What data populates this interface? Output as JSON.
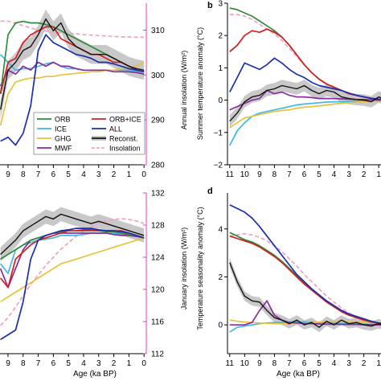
{
  "panels": {
    "a": {
      "right_axis": {
        "label": "Annual insolation (W/m²)",
        "ticks": [
          "280",
          "290",
          "300",
          "310"
        ]
      },
      "x_ticks": [
        "9",
        "8",
        "7",
        "6",
        "5",
        "4",
        "3",
        "2",
        "1",
        "0"
      ]
    },
    "b": {
      "letter": "b",
      "y_label": "Summer temperature anomaly (°C)",
      "y_ticks": [
        "−2",
        "−1",
        "0",
        "1",
        "2",
        "3"
      ],
      "x_ticks": [
        "11",
        "10",
        "9",
        "8",
        "7",
        "6",
        "5",
        "4",
        "3",
        "2",
        "1"
      ]
    },
    "c": {
      "right_axis": {
        "label": "January insolation (W/m²)",
        "ticks": [
          "112",
          "116",
          "120",
          "124",
          "128",
          "132"
        ]
      },
      "x_ticks": [
        "9",
        "8",
        "7",
        "6",
        "5",
        "4",
        "3",
        "2",
        "1",
        "0"
      ],
      "x_label": "Age (ka BP)"
    },
    "d": {
      "letter": "d",
      "y_label": "Temperature seasonality anomaly (°C)",
      "y_ticks": [
        "0",
        "2",
        "4"
      ],
      "x_ticks": [
        "11",
        "10",
        "9",
        "8",
        "7",
        "6",
        "5",
        "4",
        "3",
        "2",
        "1"
      ],
      "x_label": "Age (ka BP)"
    }
  },
  "legend": [
    {
      "label": "ORB",
      "color": "#2e8b3a",
      "style": "solid"
    },
    {
      "label": "ORB+ICE",
      "color": "#d42020",
      "style": "solid"
    },
    {
      "label": "ICE",
      "color": "#3fb8e6",
      "style": "solid"
    },
    {
      "label": "ALL",
      "color": "#1a2fb0",
      "style": "solid"
    },
    {
      "label": "GHG",
      "color": "#e8c23a",
      "style": "solid"
    },
    {
      "label": "Reconst.",
      "color": "#111111",
      "style": "reconst"
    },
    {
      "label": "MWF",
      "color": "#8a2ba0",
      "style": "solid"
    },
    {
      "label": "Insolation",
      "color": "#f0a0c8",
      "style": "dashed"
    }
  ],
  "chart_data": [
    {
      "type": "line",
      "panel": "a",
      "x": [
        9.5,
        9,
        8.5,
        8,
        7.5,
        7,
        6.5,
        6,
        5.5,
        5,
        4.5,
        4,
        3.5,
        3,
        2.5,
        2,
        1.5,
        1,
        0.5,
        0
      ],
      "right_axis_range": [
        280,
        316
      ],
      "series": [
        {
          "name": "ORB",
          "values": [
            -0.2,
            0.55,
            0.7,
            0.72,
            0.7,
            0.7,
            0.68,
            0.65,
            0.6,
            0.55,
            0.5,
            0.45,
            0.4,
            0.35,
            0.3,
            0.25,
            0.2,
            0.15,
            0.1,
            0.08
          ]
        },
        {
          "name": "ORB+ICE",
          "values": [
            -0.2,
            0.2,
            0.25,
            0.45,
            0.55,
            0.6,
            0.65,
            0.65,
            0.5,
            0.45,
            0.4,
            0.35,
            0.3,
            0.3,
            0.25,
            0.2,
            0.2,
            0.15,
            0.1,
            0.08
          ]
        },
        {
          "name": "ICE",
          "values": [
            0.3,
            0.2,
            0.1,
            0.12,
            0.12,
            0.15,
            0.18,
            0.2,
            0.15,
            0.12,
            0.12,
            0.1,
            0.1,
            0.1,
            0.1,
            0.1,
            0.1,
            0.1,
            0.08,
            0.05
          ]
        },
        {
          "name": "ALL",
          "values": [
            -0.8,
            -0.75,
            -0.85,
            -0.7,
            -0.35,
            0.35,
            0.55,
            0.45,
            0.4,
            0.35,
            0.3,
            0.28,
            0.25,
            0.2,
            0.2,
            0.18,
            0.15,
            0.12,
            0.1,
            0.08
          ]
        },
        {
          "name": "GHG",
          "values": [
            -0.6,
            -0.2,
            -0.05,
            -0.02,
            0.0,
            0.0,
            0.02,
            0.02,
            0.04,
            0.05,
            0.06,
            0.07,
            0.08,
            0.08,
            0.1,
            0.1,
            0.12,
            0.12,
            0.15,
            0.2
          ]
        },
        {
          "name": "Reconst.",
          "values": [
            -0.4,
            0.1,
            0.2,
            0.35,
            0.4,
            0.55,
            0.75,
            0.6,
            0.7,
            0.5,
            0.4,
            0.35,
            0.3,
            0.3,
            0.3,
            0.25,
            0.2,
            0.15,
            0.12,
            0.1
          ]
        },
        {
          "name": "MWF",
          "values": [
            -0.1,
            0.1,
            0.05,
            0.15,
            0.1,
            0.2,
            0.15,
            0.2,
            0.15,
            0.15,
            0.12,
            0.1,
            0.1,
            0.1,
            0.1,
            0.08,
            0.08,
            0.08,
            0.07,
            0.05
          ]
        },
        {
          "name": "Insolation",
          "values": [
            312,
            312,
            311.5,
            311,
            310.5,
            310,
            309.8,
            309.5,
            309.4,
            309.3,
            309.2,
            309,
            308.9,
            308.8,
            308.7,
            308.6,
            308.5,
            308.5,
            308.4,
            308.4
          ]
        }
      ]
    },
    {
      "type": "line",
      "panel": "b",
      "x": [
        11,
        10.5,
        10,
        9.5,
        9,
        8.5,
        8,
        7.5,
        7,
        6.5,
        6,
        5.5,
        5,
        4.5,
        4,
        3.5,
        3,
        2.5,
        2,
        1.5,
        1,
        0.5,
        0
      ],
      "ylim": [
        -2,
        3
      ],
      "series": [
        {
          "name": "ORB",
          "values": [
            2.85,
            2.8,
            2.7,
            2.6,
            2.45,
            2.3,
            2.15,
            1.95,
            1.7,
            1.4,
            1.1,
            0.85,
            0.65,
            0.5,
            0.4,
            0.3,
            0.2,
            0.15,
            0.1,
            0.05,
            0.02,
            0.0,
            0.0
          ]
        },
        {
          "name": "ORB+ICE",
          "values": [
            1.5,
            1.7,
            2.0,
            2.15,
            2.1,
            2.2,
            2.1,
            1.95,
            1.7,
            1.4,
            1.1,
            0.85,
            0.65,
            0.5,
            0.4,
            0.3,
            0.2,
            0.15,
            0.1,
            0.05,
            0.02,
            0.0,
            0.0
          ]
        },
        {
          "name": "ICE",
          "values": [
            -1.4,
            -0.95,
            -0.7,
            -0.5,
            -0.4,
            -0.35,
            -0.3,
            -0.25,
            -0.2,
            -0.15,
            -0.12,
            -0.1,
            -0.08,
            -0.06,
            -0.05,
            -0.05,
            -0.04,
            -0.03,
            -0.03,
            -0.02,
            -0.02,
            -0.01,
            0.0
          ]
        },
        {
          "name": "ALL",
          "values": [
            0.25,
            0.7,
            1.15,
            1.05,
            0.95,
            1.1,
            1.3,
            1.15,
            0.95,
            0.8,
            0.7,
            0.55,
            0.45,
            0.4,
            0.35,
            0.3,
            0.22,
            0.15,
            0.1,
            0.06,
            0.03,
            0.01,
            0.0
          ]
        },
        {
          "name": "GHG",
          "values": [
            -0.85,
            -0.7,
            -0.55,
            -0.5,
            -0.45,
            -0.4,
            -0.35,
            -0.32,
            -0.3,
            -0.25,
            -0.22,
            -0.2,
            -0.18,
            -0.15,
            -0.12,
            -0.1,
            -0.08,
            -0.06,
            -0.05,
            -0.03,
            -0.02,
            -0.01,
            0.0
          ]
        },
        {
          "name": "Reconst.",
          "values": [
            -0.65,
            -0.4,
            -0.05,
            0.1,
            0.15,
            0.3,
            0.35,
            0.45,
            0.4,
            0.35,
            0.45,
            0.3,
            0.2,
            0.3,
            0.25,
            0.1,
            0.05,
            0.02,
            0.0,
            -0.05,
            0.1,
            0.0,
            -0.1
          ]
        },
        {
          "name": "MWF",
          "values": [
            -0.3,
            -0.2,
            -0.1,
            0.0,
            0.05,
            0.3,
            0.2,
            0.25,
            0.15,
            0.1,
            0.1,
            0.08,
            0.05,
            0.05,
            0.05,
            0.04,
            0.03,
            0.02,
            0.02,
            0.01,
            0.0,
            0.0,
            0.0
          ]
        },
        {
          "name": "Insolation",
          "values": [
            2.65,
            2.65,
            2.6,
            2.5,
            2.35,
            2.2,
            2.05,
            1.85,
            1.6,
            1.35,
            1.1,
            0.85,
            0.65,
            0.5,
            0.38,
            0.28,
            0.2,
            0.13,
            0.08,
            0.04,
            0.02,
            0.0,
            0.0
          ]
        }
      ]
    },
    {
      "type": "line",
      "panel": "c",
      "x": [
        9.5,
        9,
        8.5,
        8,
        7.5,
        7,
        6.5,
        6,
        5.5,
        5,
        4.5,
        4,
        3.5,
        3,
        2.5,
        2,
        1.5,
        1,
        0.5,
        0
      ],
      "right_axis_range": [
        112,
        132
      ],
      "series": [
        {
          "name": "ORB",
          "values": [
            -0.3,
            -0.2,
            -0.1,
            0.0,
            0.1,
            0.15,
            0.2,
            0.25,
            0.28,
            0.3,
            0.3,
            0.3,
            0.3,
            0.3,
            0.28,
            0.28,
            0.25,
            0.22,
            0.2,
            0.15
          ]
        },
        {
          "name": "ORB+ICE",
          "values": [
            -0.7,
            -0.9,
            -0.3,
            -0.15,
            0.0,
            0.1,
            0.15,
            0.2,
            0.25,
            0.3,
            0.3,
            0.32,
            0.32,
            0.3,
            0.3,
            0.3,
            0.3,
            0.25,
            0.2,
            0.15
          ]
        },
        {
          "name": "ICE",
          "values": [
            -0.4,
            -0.6,
            -0.1,
            0.0,
            0.05,
            0.1,
            0.12,
            0.15,
            0.2,
            0.2,
            0.2,
            0.22,
            0.25,
            0.25,
            0.25,
            0.25,
            0.22,
            0.2,
            0.18,
            0.15
          ]
        },
        {
          "name": "ALL",
          "values": [
            -2.0,
            -1.9,
            -1.8,
            -1.2,
            -0.3,
            0.1,
            0.2,
            0.25,
            0.3,
            0.32,
            0.35,
            0.35,
            0.35,
            0.32,
            0.3,
            0.3,
            0.28,
            0.25,
            0.2,
            0.15
          ]
        },
        {
          "name": "GHG",
          "values": [
            -1.2,
            -1.1,
            -1.0,
            -0.9,
            -0.8,
            -0.7,
            -0.6,
            -0.5,
            -0.4,
            -0.35,
            -0.3,
            -0.25,
            -0.2,
            -0.15,
            -0.1,
            -0.05,
            0.0,
            0.05,
            0.1,
            0.15
          ]
        },
        {
          "name": "Reconst.",
          "values": [
            -0.2,
            -0.05,
            0.1,
            0.3,
            0.4,
            0.5,
            0.6,
            0.55,
            0.65,
            0.6,
            0.55,
            0.5,
            0.45,
            0.5,
            0.45,
            0.4,
            0.35,
            0.3,
            0.25,
            0.2
          ]
        },
        {
          "name": "MWF",
          "values": [
            -0.5,
            -0.9,
            -0.5,
            -0.1,
            0.1,
            0.15,
            0.2,
            0.25,
            0.25,
            0.25,
            0.25,
            0.25,
            0.25,
            0.25,
            0.25,
            0.22,
            0.2,
            0.2,
            0.18,
            0.15
          ]
        },
        {
          "name": "Insolation",
          "values": [
            115.5,
            116.5,
            117.8,
            119.2,
            120.6,
            121.8,
            123.0,
            124.0,
            125.0,
            125.8,
            126.6,
            127.2,
            127.8,
            128.2,
            128.5,
            128.7,
            128.8,
            128.7,
            128.5,
            128.2
          ]
        }
      ]
    },
    {
      "type": "line",
      "panel": "d",
      "x": [
        11,
        10.5,
        10,
        9.5,
        9,
        8.5,
        8,
        7.5,
        7,
        6.5,
        6,
        5.5,
        5,
        4.5,
        4,
        3.5,
        3,
        2.5,
        2,
        1.5,
        1,
        0.5,
        0
      ],
      "ylim": [
        -1.2,
        5.5
      ],
      "series": [
        {
          "name": "ORB",
          "values": [
            3.85,
            3.7,
            3.55,
            3.45,
            3.3,
            3.1,
            2.9,
            2.65,
            2.35,
            2.05,
            1.75,
            1.5,
            1.25,
            1.0,
            0.8,
            0.6,
            0.45,
            0.35,
            0.25,
            0.15,
            0.08,
            0.03,
            0.0
          ]
        },
        {
          "name": "ORB+ICE",
          "values": [
            3.7,
            3.6,
            3.5,
            3.4,
            3.25,
            3.05,
            2.85,
            2.6,
            2.3,
            2.0,
            1.7,
            1.45,
            1.2,
            0.95,
            0.75,
            0.55,
            0.4,
            0.3,
            0.2,
            0.12,
            0.06,
            0.02,
            0.0
          ]
        },
        {
          "name": "ICE",
          "values": [
            -0.3,
            -0.1,
            -0.05,
            0.0,
            0.05,
            0.08,
            0.1,
            0.1,
            0.12,
            0.12,
            0.12,
            0.12,
            0.1,
            0.1,
            0.08,
            0.06,
            0.05,
            0.04,
            0.03,
            0.02,
            0.01,
            0.0,
            0.0
          ]
        },
        {
          "name": "ALL",
          "values": [
            5.0,
            4.85,
            4.7,
            4.45,
            4.1,
            3.7,
            3.3,
            2.9,
            2.5,
            2.1,
            1.8,
            1.5,
            1.25,
            1.0,
            0.8,
            0.6,
            0.45,
            0.35,
            0.25,
            0.15,
            0.08,
            0.03,
            0.0
          ]
        },
        {
          "name": "GHG",
          "values": [
            0.2,
            0.15,
            0.12,
            0.1,
            0.08,
            0.06,
            0.05,
            0.05,
            0.05,
            0.06,
            0.08,
            0.1,
            0.12,
            0.14,
            0.15,
            0.16,
            0.15,
            0.14,
            0.12,
            0.1,
            0.06,
            0.03,
            0.0
          ]
        },
        {
          "name": "Reconst.",
          "values": [
            2.6,
            1.8,
            1.2,
            1.0,
            0.95,
            0.6,
            0.3,
            0.2,
            0.05,
            0.2,
            0.0,
            0.1,
            -0.1,
            0.15,
            0.0,
            0.2,
            0.05,
            0.1,
            0.0,
            -0.05,
            0.05,
            -0.05,
            -0.1
          ]
        },
        {
          "name": "MWF",
          "values": [
            0.0,
            0.0,
            0.0,
            0.1,
            0.6,
            1.0,
            0.4,
            0.2,
            0.1,
            0.08,
            0.06,
            0.05,
            0.04,
            0.03,
            0.03,
            0.02,
            0.02,
            0.02,
            0.01,
            0.01,
            0.0,
            0.0,
            0.0
          ]
        },
        {
          "name": "Insolation",
          "values": [
            3.7,
            3.75,
            3.8,
            3.75,
            3.65,
            3.5,
            3.3,
            3.05,
            2.75,
            2.45,
            2.1,
            1.8,
            1.5,
            1.2,
            0.95,
            0.7,
            0.5,
            0.32,
            0.18,
            0.05,
            -0.05,
            -0.1,
            -0.1
          ]
        }
      ]
    }
  ]
}
